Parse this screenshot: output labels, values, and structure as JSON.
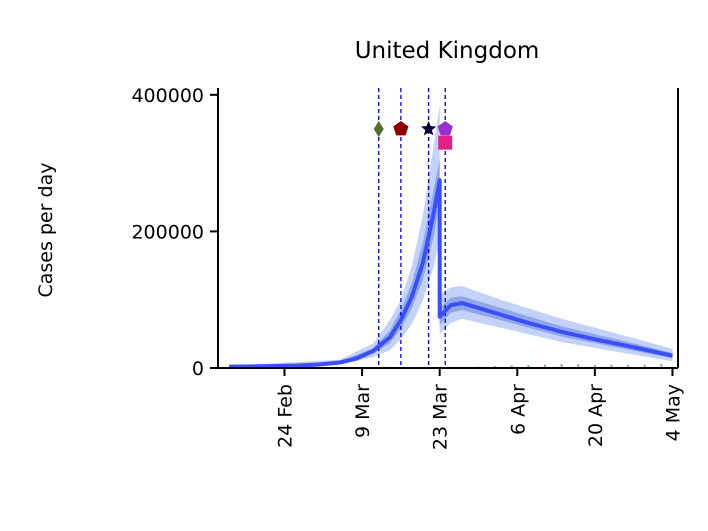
{
  "chart_data": {
    "type": "line",
    "title": "United Kingdom",
    "xlabel": "",
    "ylabel": "Cases per day",
    "x_axis": {
      "type": "date",
      "range": [
        "2020-02-12",
        "2020-05-05"
      ]
    },
    "ylim": [
      0,
      410000
    ],
    "y_ticks": [
      0,
      200000,
      400000
    ],
    "y_tick_labels": [
      "0",
      "200000",
      "400000"
    ],
    "x_ticks": [
      "2020-02-24",
      "2020-03-09",
      "2020-03-23",
      "2020-04-06",
      "2020-04-20",
      "2020-05-04"
    ],
    "x_tick_labels": [
      "24 Feb",
      "9 Mar",
      "23 Mar",
      "6 Apr",
      "20 Apr",
      "4 May"
    ],
    "grid": false,
    "colors": {
      "median_line": "#3a4ff5",
      "inner_band": "#8fa6ec",
      "outer_band": "#c3d2f6",
      "observed_bars": "#7fb1d6",
      "intervention_lines": "#0000cc"
    },
    "series": [
      {
        "role": "median",
        "points": [
          [
            "2020-02-14",
            2000
          ],
          [
            "2020-02-20",
            2500
          ],
          [
            "2020-02-26",
            3500
          ],
          [
            "2020-03-01",
            5000
          ],
          [
            "2020-03-05",
            8000
          ],
          [
            "2020-03-08",
            14000
          ],
          [
            "2020-03-11",
            25000
          ],
          [
            "2020-03-14",
            45000
          ],
          [
            "2020-03-16",
            70000
          ],
          [
            "2020-03-18",
            105000
          ],
          [
            "2020-03-20",
            155000
          ],
          [
            "2020-03-22",
            230000
          ],
          [
            "2020-03-23",
            275000
          ],
          [
            "2020-03-23",
            75000
          ],
          [
            "2020-03-25",
            92000
          ],
          [
            "2020-03-27",
            95000
          ],
          [
            "2020-03-30",
            88000
          ],
          [
            "2020-04-03",
            78000
          ],
          [
            "2020-04-08",
            66000
          ],
          [
            "2020-04-14",
            53000
          ],
          [
            "2020-04-20",
            42000
          ],
          [
            "2020-04-26",
            32000
          ],
          [
            "2020-05-04",
            18000
          ]
        ]
      },
      {
        "role": "interval_50",
        "upper": [
          [
            "2020-02-14",
            2500
          ],
          [
            "2020-03-05",
            9500
          ],
          [
            "2020-03-11",
            29000
          ],
          [
            "2020-03-14",
            55000
          ],
          [
            "2020-03-16",
            85000
          ],
          [
            "2020-03-18",
            125000
          ],
          [
            "2020-03-20",
            185000
          ],
          [
            "2020-03-22",
            265000
          ],
          [
            "2020-03-23",
            305000
          ],
          [
            "2020-03-23",
            88000
          ],
          [
            "2020-03-25",
            103000
          ],
          [
            "2020-03-27",
            105000
          ],
          [
            "2020-04-03",
            88000
          ],
          [
            "2020-04-14",
            61000
          ],
          [
            "2020-04-26",
            38000
          ],
          [
            "2020-05-04",
            22000
          ]
        ],
        "lower": [
          [
            "2020-02-14",
            1500
          ],
          [
            "2020-03-05",
            6500
          ],
          [
            "2020-03-11",
            21000
          ],
          [
            "2020-03-14",
            36000
          ],
          [
            "2020-03-16",
            58000
          ],
          [
            "2020-03-18",
            88000
          ],
          [
            "2020-03-20",
            130000
          ],
          [
            "2020-03-22",
            195000
          ],
          [
            "2020-03-23",
            245000
          ],
          [
            "2020-03-23",
            63000
          ],
          [
            "2020-03-25",
            81000
          ],
          [
            "2020-03-27",
            85000
          ],
          [
            "2020-04-03",
            70000
          ],
          [
            "2020-04-14",
            46000
          ],
          [
            "2020-04-26",
            27000
          ],
          [
            "2020-05-04",
            14000
          ]
        ]
      },
      {
        "role": "interval_95",
        "upper": [
          [
            "2020-02-14",
            3500
          ],
          [
            "2020-03-05",
            12000
          ],
          [
            "2020-03-11",
            36000
          ],
          [
            "2020-03-14",
            70000
          ],
          [
            "2020-03-16",
            100000
          ],
          [
            "2020-03-18",
            150000
          ],
          [
            "2020-03-20",
            225000
          ],
          [
            "2020-03-22",
            330000
          ],
          [
            "2020-03-23",
            385000
          ],
          [
            "2020-03-23",
            108000
          ],
          [
            "2020-03-25",
            118000
          ],
          [
            "2020-03-27",
            120000
          ],
          [
            "2020-04-03",
            100000
          ],
          [
            "2020-04-14",
            72000
          ],
          [
            "2020-04-26",
            46000
          ],
          [
            "2020-05-04",
            28000
          ]
        ],
        "lower": [
          [
            "2020-02-14",
            1000
          ],
          [
            "2020-03-05",
            5000
          ],
          [
            "2020-03-11",
            16000
          ],
          [
            "2020-03-14",
            26000
          ],
          [
            "2020-03-16",
            42000
          ],
          [
            "2020-03-18",
            65000
          ],
          [
            "2020-03-20",
            100000
          ],
          [
            "2020-03-22",
            150000
          ],
          [
            "2020-03-23",
            190000
          ],
          [
            "2020-03-23",
            50000
          ],
          [
            "2020-03-25",
            66000
          ],
          [
            "2020-03-27",
            72000
          ],
          [
            "2020-04-03",
            59000
          ],
          [
            "2020-04-14",
            38000
          ],
          [
            "2020-04-26",
            21000
          ],
          [
            "2020-05-04",
            10000
          ]
        ]
      }
    ],
    "observed_cases": [
      [
        "2020-03-27",
        1000
      ],
      [
        "2020-03-30",
        2000
      ],
      [
        "2020-04-02",
        3000
      ],
      [
        "2020-04-05",
        4000
      ],
      [
        "2020-04-08",
        4500
      ],
      [
        "2020-04-11",
        5000
      ],
      [
        "2020-04-14",
        6000
      ],
      [
        "2020-04-17",
        5500
      ],
      [
        "2020-04-20",
        5000
      ],
      [
        "2020-04-23",
        5000
      ],
      [
        "2020-04-26",
        4800
      ],
      [
        "2020-04-29",
        5000
      ],
      [
        "2020-05-02",
        6000
      ]
    ],
    "interventions": [
      {
        "date": "2020-03-12",
        "marker": "diamond",
        "color": "#556b2f",
        "y": 350000
      },
      {
        "date": "2020-03-16",
        "marker": "pentagon",
        "color": "#8b0000",
        "y": 350000
      },
      {
        "date": "2020-03-21",
        "marker": "star",
        "color": "#000033",
        "y": 350000
      },
      {
        "date": "2020-03-24",
        "marker": "pentagon",
        "color": "#9932cc",
        "y": 350000
      },
      {
        "date": "2020-03-24",
        "marker": "square",
        "color": "#e0218a",
        "y": 330000
      }
    ]
  }
}
